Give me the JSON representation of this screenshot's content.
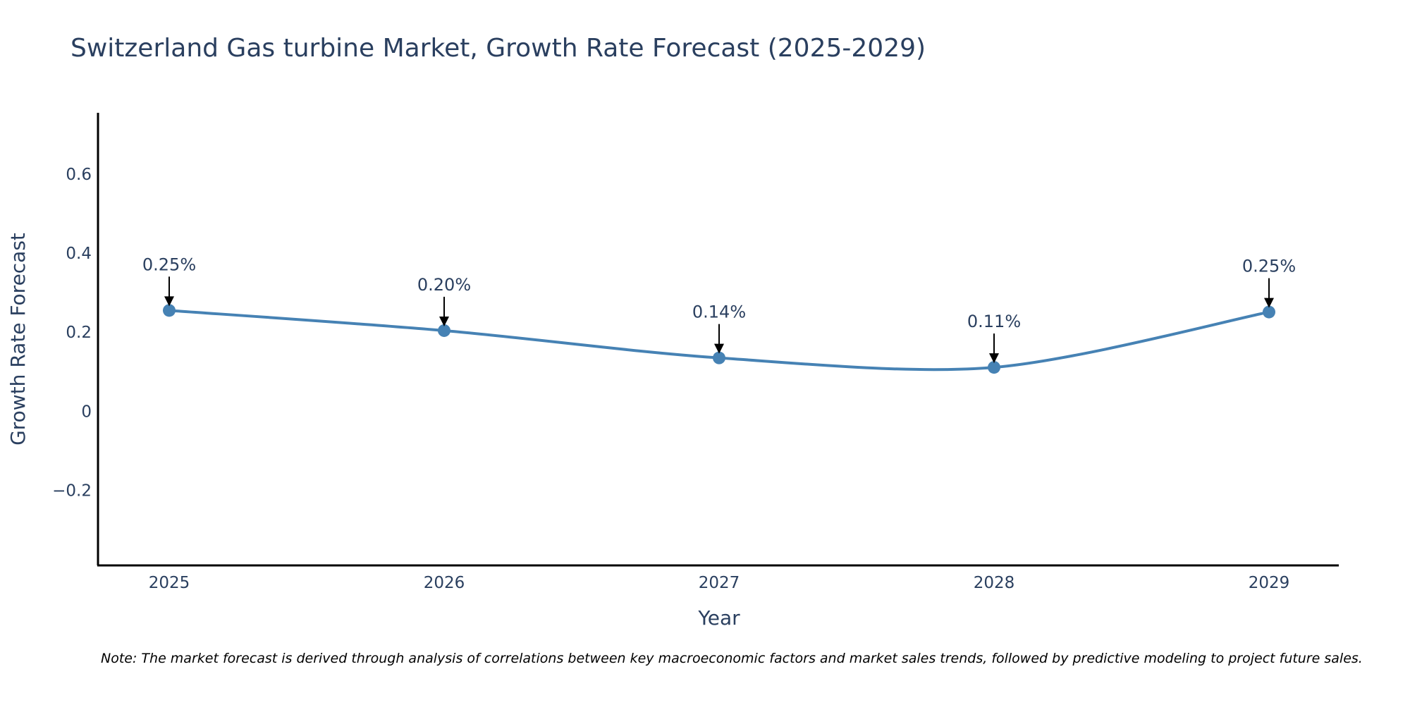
{
  "chart_data": {
    "type": "line",
    "title": "Switzerland Gas turbine Market, Growth Rate Forecast (2025-2029)",
    "xlabel": "Year",
    "ylabel": "Growth Rate Forecast",
    "categories": [
      "2025",
      "2026",
      "2027",
      "2028",
      "2029"
    ],
    "series": [
      {
        "name": "Growth Rate Forecast",
        "values": [
          0.255,
          0.204,
          0.135,
          0.111,
          0.251
        ]
      }
    ],
    "data_labels": [
      "0.25%",
      "0.20%",
      "0.14%",
      "0.11%",
      "0.25%"
    ],
    "ylim": [
      -0.39,
      0.755
    ],
    "yticks": [
      -0.2,
      0,
      0.2,
      0.4,
      0.6
    ],
    "ytick_labels": [
      "−0.2",
      "0",
      "0.2",
      "0.4",
      "0.6"
    ],
    "line_color": "#4682b4",
    "marker_color": "#4682b4",
    "grid": false,
    "note": "Note: The market forecast is derived through analysis of correlations between key macroeconomic factors and market sales trends, followed by predictive modeling to project future sales."
  }
}
